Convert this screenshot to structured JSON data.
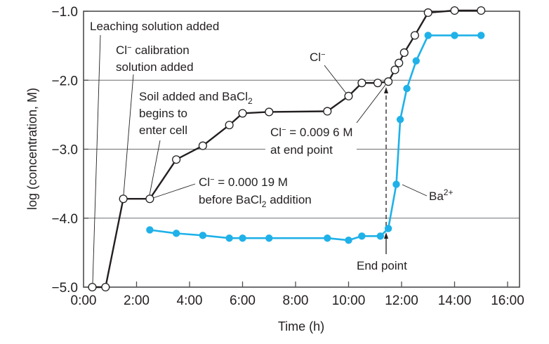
{
  "chart_data": {
    "type": "line",
    "title": "",
    "xlabel": "Time (h)",
    "ylabel": "log (concentration, M)",
    "xlim": [
      0,
      16.5
    ],
    "ylim": [
      -5.0,
      -1.0
    ],
    "x_ticks": [
      {
        "value": 0,
        "label": "0:00"
      },
      {
        "value": 2,
        "label": "2:00"
      },
      {
        "value": 4,
        "label": "4:00"
      },
      {
        "value": 6,
        "label": "6:00"
      },
      {
        "value": 8,
        "label": "8:00"
      },
      {
        "value": 10,
        "label": "10:00"
      },
      {
        "value": 12,
        "label": "12:00"
      },
      {
        "value": 14,
        "label": "14:00"
      },
      {
        "value": 16,
        "label": "16:00"
      }
    ],
    "y_ticks": [
      {
        "value": -1.0,
        "label": "−1.0"
      },
      {
        "value": -2.0,
        "label": "−2.0"
      },
      {
        "value": -3.0,
        "label": "−3.0"
      },
      {
        "value": -4.0,
        "label": "−4.0"
      },
      {
        "value": -5.0,
        "label": "−5.0"
      }
    ],
    "grid": {
      "horizontal": true,
      "vertical": false
    },
    "series": [
      {
        "name": "Cl⁻",
        "color": "#231f20",
        "marker": "open-circle",
        "points": [
          [
            0.33,
            -5.0
          ],
          [
            0.83,
            -5.0
          ],
          [
            1.5,
            -3.72
          ],
          [
            2.5,
            -3.72
          ],
          [
            3.5,
            -3.15
          ],
          [
            4.5,
            -2.95
          ],
          [
            5.5,
            -2.65
          ],
          [
            6.0,
            -2.48
          ],
          [
            7.0,
            -2.46
          ],
          [
            9.2,
            -2.45
          ],
          [
            10.0,
            -2.23
          ],
          [
            10.5,
            -2.04
          ],
          [
            11.1,
            -2.04
          ],
          [
            11.5,
            -2.02
          ],
          [
            11.75,
            -1.85
          ],
          [
            11.9,
            -1.75
          ],
          [
            12.1,
            -1.6
          ],
          [
            12.5,
            -1.35
          ],
          [
            13.0,
            -1.02
          ],
          [
            14.0,
            -0.99
          ],
          [
            15.0,
            -0.99
          ]
        ]
      },
      {
        "name": "Ba²⁺",
        "color": "#1fb1e8",
        "marker": "filled-circle",
        "points": [
          [
            2.5,
            -4.17
          ],
          [
            3.5,
            -4.22
          ],
          [
            4.5,
            -4.25
          ],
          [
            5.5,
            -4.29
          ],
          [
            6.0,
            -4.29
          ],
          [
            7.0,
            -4.29
          ],
          [
            9.2,
            -4.29
          ],
          [
            10.0,
            -4.32
          ],
          [
            10.5,
            -4.26
          ],
          [
            11.2,
            -4.26
          ],
          [
            11.5,
            -4.15
          ],
          [
            11.8,
            -3.51
          ],
          [
            11.95,
            -2.57
          ],
          [
            12.2,
            -2.12
          ],
          [
            12.55,
            -1.72
          ],
          [
            13.0,
            -1.35
          ],
          [
            14.0,
            -1.35
          ],
          [
            15.0,
            -1.35
          ]
        ]
      }
    ],
    "annotations": [
      {
        "id": "leaching",
        "lines": [
          "Leaching solution added"
        ],
        "points_to": [
          0.33,
          -5.0
        ]
      },
      {
        "id": "calibration",
        "lines": [
          "Cl⁻ calibration",
          "solution added"
        ],
        "points_to": [
          1.5,
          -3.72
        ]
      },
      {
        "id": "soil",
        "lines": [
          "Soil added and BaCl₂",
          "begins to",
          "enter cell"
        ],
        "points_to": [
          2.5,
          -3.72
        ]
      },
      {
        "id": "cl_before",
        "lines": [
          "Cl⁻ = 0.000 19 M",
          "before BaCl₂ addition"
        ],
        "points_to": [
          2.5,
          -3.72
        ]
      },
      {
        "id": "cl_end",
        "lines": [
          "Cl⁻ = 0.009 6 M",
          "at end point"
        ],
        "points_to": [
          11.5,
          -2.02
        ]
      },
      {
        "id": "cl_label",
        "lines": [
          "Cl⁻"
        ],
        "points_to": [
          10.0,
          -2.23
        ]
      },
      {
        "id": "ba_label",
        "lines": [
          "Ba²⁺"
        ],
        "points_to": [
          11.8,
          -3.51
        ]
      },
      {
        "id": "end_point",
        "lines": [
          "End point"
        ],
        "points_to": [
          11.5,
          -4.15
        ]
      }
    ],
    "end_point_marker": {
      "x": 11.5,
      "style": "dashed-vertical-arrow",
      "from": -4.15,
      "to": -2.02
    },
    "legend": null
  },
  "labels": {
    "x_axis_title": "Time (h)",
    "y_axis_title": "log (concentration, M)",
    "leaching": "Leaching solution added",
    "calib_line1_pre": "Cl",
    "calib_line1_post": " calibration",
    "calib_line2": "solution added",
    "soil_line1_pre": "Soil added and BaCl",
    "soil_line1_sub": "2",
    "soil_line2": "begins to",
    "soil_line3": "enter cell",
    "before_line1_pre": "Cl",
    "before_line1_post": " = 0.000 19 M",
    "before_line2_pre": "before BaCl",
    "before_line2_sub": "2",
    "before_line2_post": " addition",
    "end_line1_pre": "Cl",
    "end_line1_post": " = 0.009 6 M",
    "end_line2": "at end point",
    "cl_series_label": "Cl",
    "ba_series_label": "Ba",
    "ba_sup": "2+",
    "minus_sup": "−",
    "end_point": "End point"
  }
}
